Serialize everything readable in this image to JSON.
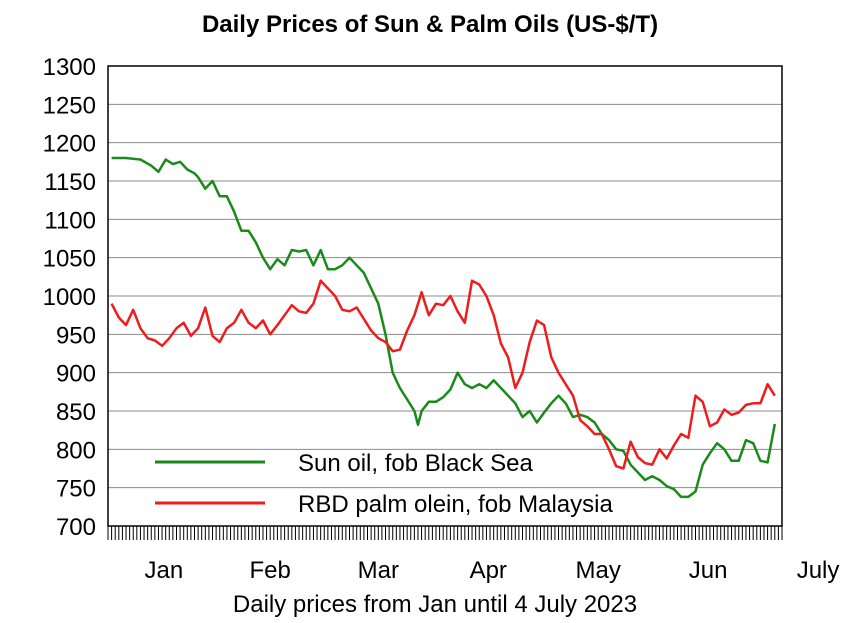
{
  "chart_data": {
    "type": "line",
    "title": "Daily Prices of Sun & Palm Oils (US-$/T)",
    "xlabel": "Daily prices from Jan until 4 July 2023",
    "ylabel": "",
    "ylim": [
      700,
      1300
    ],
    "yticks": [
      700,
      750,
      800,
      850,
      900,
      950,
      1000,
      1050,
      1100,
      1150,
      1200,
      1250,
      1300
    ],
    "xlim": [
      0,
      187
    ],
    "month_labels": [
      "Jan",
      "Feb",
      "Mar",
      "Apr",
      "May",
      "Jun",
      "July"
    ],
    "month_positions": [
      15.5,
      45,
      75,
      105.5,
      136,
      166.5,
      197
    ],
    "grid": true,
    "legend_position": "bottom-center",
    "series": [
      {
        "name": "Sun oil, fob Black Sea",
        "color": "#1a8a1a",
        "x": [
          1,
          5,
          9,
          12,
          14,
          16,
          18,
          20,
          22,
          24,
          25,
          27,
          29,
          31,
          33,
          35,
          37,
          39,
          41,
          43,
          45,
          47,
          49,
          51,
          53,
          55,
          57,
          59,
          61,
          63,
          65,
          67,
          69,
          71,
          73,
          75,
          77,
          79,
          81,
          83,
          85,
          86,
          87,
          89,
          91,
          93,
          95,
          97,
          99,
          101,
          103,
          105,
          107,
          109,
          111,
          113,
          115,
          117,
          119,
          121,
          123,
          125,
          127,
          129,
          131,
          133,
          135,
          137,
          139,
          141,
          143,
          145,
          147,
          149,
          151,
          153,
          155,
          157,
          159,
          161,
          163,
          165,
          167,
          169,
          171,
          173,
          175,
          177,
          179,
          181,
          183,
          185
        ],
        "y": [
          1180,
          1180,
          1178,
          1170,
          1162,
          1178,
          1172,
          1175,
          1165,
          1160,
          1155,
          1140,
          1150,
          1130,
          1130,
          1110,
          1085,
          1085,
          1070,
          1050,
          1035,
          1048,
          1040,
          1060,
          1058,
          1060,
          1040,
          1060,
          1035,
          1035,
          1040,
          1050,
          1040,
          1030,
          1010,
          990,
          950,
          900,
          880,
          865,
          850,
          832,
          850,
          862,
          862,
          868,
          878,
          900,
          885,
          880,
          885,
          880,
          890,
          880,
          870,
          860,
          842,
          850,
          835,
          848,
          860,
          870,
          860,
          842,
          845,
          842,
          835,
          820,
          812,
          800,
          798,
          780,
          770,
          760,
          765,
          760,
          752,
          748,
          738,
          738,
          745,
          780,
          795,
          808,
          800,
          785,
          785,
          812,
          808,
          785,
          783,
          833
        ]
      },
      {
        "name": "RBD palm olein, fob Malaysia",
        "color": "#ee1c1c",
        "x": [
          1,
          3,
          5,
          7,
          9,
          11,
          13,
          15,
          17,
          19,
          21,
          23,
          25,
          27,
          29,
          31,
          33,
          35,
          37,
          39,
          41,
          43,
          45,
          47,
          49,
          51,
          53,
          55,
          57,
          59,
          61,
          63,
          65,
          67,
          69,
          71,
          73,
          75,
          77,
          79,
          81,
          83,
          85,
          87,
          89,
          91,
          93,
          95,
          97,
          99,
          101,
          103,
          105,
          107,
          109,
          111,
          113,
          115,
          117,
          119,
          121,
          123,
          125,
          127,
          129,
          131,
          133,
          135,
          137,
          139,
          141,
          143,
          145,
          147,
          149,
          151,
          153,
          155,
          157,
          159,
          161,
          163,
          165,
          167,
          169,
          171,
          173,
          175,
          177,
          179,
          181,
          183,
          185
        ],
        "y": [
          990,
          972,
          962,
          982,
          958,
          945,
          942,
          935,
          945,
          958,
          965,
          948,
          958,
          985,
          948,
          940,
          958,
          965,
          982,
          965,
          958,
          968,
          950,
          962,
          975,
          988,
          980,
          978,
          990,
          1020,
          1010,
          1000,
          982,
          980,
          985,
          970,
          955,
          945,
          940,
          928,
          930,
          955,
          975,
          1005,
          975,
          990,
          988,
          1000,
          980,
          965,
          1020,
          1015,
          1000,
          975,
          938,
          920,
          880,
          900,
          940,
          968,
          962,
          920,
          900,
          885,
          870,
          838,
          830,
          820,
          820,
          800,
          778,
          775,
          810,
          790,
          782,
          780,
          800,
          788,
          805,
          820,
          815,
          870,
          862,
          830,
          835,
          852,
          845,
          848,
          858,
          860,
          860,
          885,
          870
        ]
      }
    ]
  }
}
